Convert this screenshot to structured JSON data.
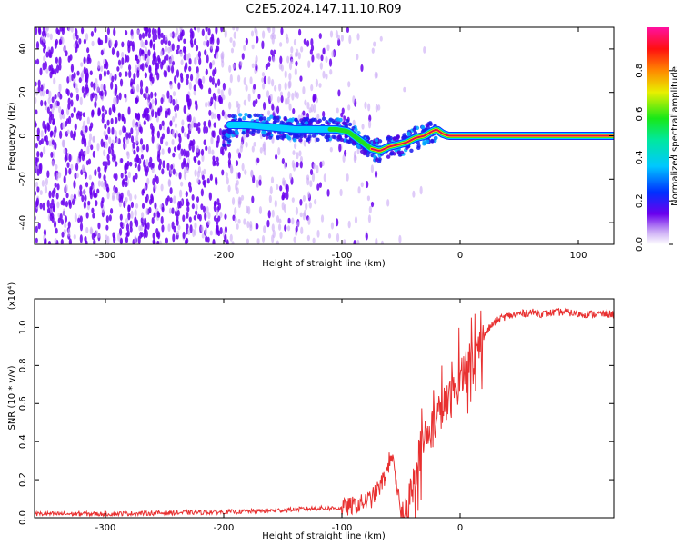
{
  "title": "C2E5.2024.147.11.10.R09",
  "colors": {
    "snr_line": "#e83030",
    "ridge_core": "#e0104a",
    "scatter_strong": "#6a00ee",
    "scatter_faint": "#c9a8f5"
  },
  "chart_data": [
    {
      "type": "heatmap",
      "name": "spectrogram",
      "title": "C2E5.2024.147.11.10.R09",
      "xlabel": "Height of straight line (km)",
      "ylabel": "Frequency (Hz)",
      "xlim": [
        -360,
        130
      ],
      "ylim": [
        -50,
        50
      ],
      "xticks": [
        -300,
        -200,
        -100,
        0,
        100
      ],
      "yticks": [
        -40,
        -20,
        0,
        20,
        40
      ],
      "colorbar": {
        "label": "Normalized spectral amplitude",
        "range": [
          0,
          1
        ],
        "ticks": [
          "0.0",
          "0.2",
          "0.4",
          "0.6",
          "0.8"
        ],
        "colormap": "rainbow (white-violet-blue-cyan-green-yellow-red-magenta)"
      },
      "grid": false,
      "ridge": {
        "x": [
          -195,
          -180,
          -160,
          -140,
          -120,
          -105,
          -95,
          -85,
          -75,
          -68,
          -60,
          -52,
          -45,
          -38,
          -30,
          -24,
          -20,
          -15,
          -10,
          -5,
          0,
          130
        ],
        "freq": [
          5,
          5,
          4,
          3,
          3,
          3,
          2,
          -2,
          -6,
          -7,
          -5,
          -4,
          -3,
          -1,
          0,
          2,
          3,
          1,
          0,
          0,
          0,
          0
        ]
      }
    },
    {
      "type": "line",
      "name": "snr",
      "xlabel": "Height of straight line (km)",
      "ylabel": "SNR (10 * v/v)",
      "y_scale_label": "(x10⁴)",
      "xlim": [
        -360,
        130
      ],
      "ylim": [
        0,
        1.15
      ],
      "xticks": [
        -300,
        -200,
        -100,
        0
      ],
      "yticks": [
        "0.0",
        "0.2",
        "0.4",
        "0.6",
        "0.8",
        "1.0"
      ],
      "grid": false,
      "series": [
        {
          "x": [
            -360,
            -300,
            -250,
            -200,
            -170,
            -150,
            -120,
            -100,
            -85,
            -75,
            -68,
            -62,
            -58,
            -55,
            -52,
            -50,
            -46,
            -42,
            -38,
            -34,
            -30,
            -26,
            -22,
            -18,
            -14,
            -10,
            -6,
            -2,
            0,
            5,
            10,
            15,
            20,
            25,
            30,
            35,
            40,
            50,
            60,
            70,
            80,
            90,
            100,
            110,
            120,
            130
          ],
          "y": [
            0.02,
            0.02,
            0.025,
            0.03,
            0.035,
            0.04,
            0.05,
            0.05,
            0.07,
            0.1,
            0.16,
            0.24,
            0.35,
            0.2,
            0.1,
            0.05,
            0.05,
            0.1,
            0.25,
            0.35,
            0.4,
            0.45,
            0.5,
            0.55,
            0.58,
            0.6,
            0.65,
            0.7,
            0.75,
            0.8,
            0.85,
            0.9,
            0.95,
            1.0,
            1.03,
            1.05,
            1.06,
            1.07,
            1.08,
            1.07,
            1.08,
            1.08,
            1.07,
            1.07,
            1.07,
            1.07
          ]
        }
      ]
    }
  ]
}
